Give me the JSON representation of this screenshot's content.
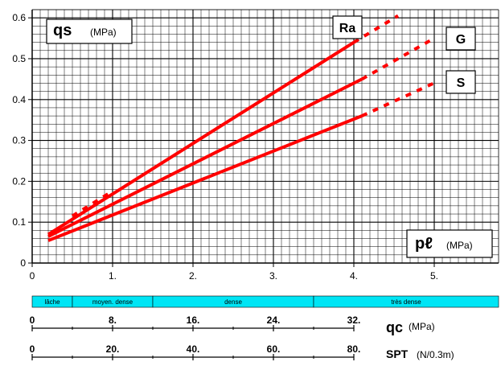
{
  "chart_data": {
    "type": "line",
    "y_axis": {
      "label": "qs",
      "unit": "(MPa)",
      "ylim": [
        0,
        0.62
      ],
      "ticks": [
        0,
        0.1,
        0.2,
        0.3,
        0.4,
        0.5,
        0.6
      ],
      "tick_labels": [
        "0",
        "0.1",
        "0.2",
        "0.3",
        "0.4",
        "0.5",
        "0.6"
      ],
      "minor_step": 0.02
    },
    "x_axis": {
      "label": "pℓ",
      "unit": "(MPa)",
      "xlim": [
        0,
        5.8
      ],
      "ticks": [
        0,
        1,
        2,
        3,
        4,
        5
      ],
      "tick_labels": [
        "0",
        "1.",
        "2.",
        "3.",
        "4.",
        "5."
      ],
      "minor_step": 0.1
    },
    "grid": true,
    "series": [
      {
        "name": "Ra",
        "color": "#ff0000",
        "solid": [
          [
            0.2,
            0.07
          ],
          [
            4.0,
            0.54
          ]
        ],
        "dashed": [
          [
            0.5,
            0.115
          ],
          [
            0.95,
            0.17
          ],
          [
            4.0,
            0.54
          ],
          [
            4.55,
            0.605
          ]
        ]
      },
      {
        "name": "G",
        "color": "#ff0000",
        "solid": [
          [
            0.2,
            0.065
          ],
          [
            4.1,
            0.45
          ]
        ],
        "dashed": [
          [
            4.1,
            0.45
          ],
          [
            5.0,
            0.55
          ]
        ]
      },
      {
        "name": "S",
        "color": "#ff0000",
        "solid": [
          [
            0.2,
            0.055
          ],
          [
            4.1,
            0.36
          ]
        ],
        "dashed": [
          [
            4.1,
            0.36
          ],
          [
            5.05,
            0.445
          ]
        ]
      }
    ],
    "density_scale": {
      "color": "#00e5f5",
      "segments": [
        {
          "label": "lâche",
          "from": 0,
          "to": 0.5
        },
        {
          "label": "moyen. dense",
          "from": 0.5,
          "to": 1.5
        },
        {
          "label": "dense",
          "from": 1.5,
          "to": 3.5
        },
        {
          "label": "très dense",
          "from": 3.5,
          "to": 5.8
        }
      ]
    },
    "qc_scale": {
      "label": "qc",
      "unit": "(MPa)",
      "ticks": [
        0,
        1,
        2,
        3,
        4
      ],
      "tick_labels": [
        "0",
        "8.",
        "16.",
        "24.",
        "32."
      ]
    },
    "spt_scale": {
      "label": "SPT",
      "unit": "(N/0.3m)",
      "ticks": [
        0,
        1,
        2,
        3,
        4
      ],
      "tick_labels": [
        "0",
        "20.",
        "40.",
        "60.",
        "80."
      ]
    }
  }
}
